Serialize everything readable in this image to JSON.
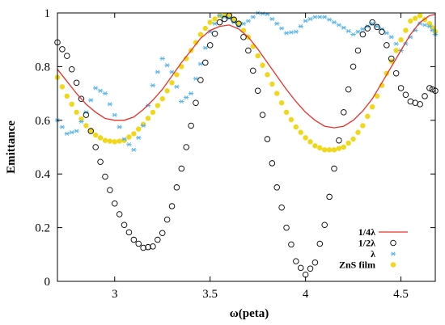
{
  "chart_data": {
    "type": "line",
    "title": "",
    "xlabel": "ω(peta)",
    "ylabel": "Emittance",
    "xlim": [
      2.7,
      4.68
    ],
    "ylim": [
      0,
      1
    ],
    "grid": false,
    "legend_position": "bottom-right",
    "xticks": [
      {
        "value": 3.0,
        "label": "3"
      },
      {
        "value": 3.5,
        "label": "3.5"
      },
      {
        "value": 4.0,
        "label": "4"
      },
      {
        "value": 4.5,
        "label": "4.5"
      }
    ],
    "yticks": [
      {
        "value": 0,
        "label": "0"
      },
      {
        "value": 0.2,
        "label": "0.2"
      },
      {
        "value": 0.4,
        "label": "0.4"
      },
      {
        "value": 0.6,
        "label": "0.6"
      },
      {
        "value": 0.8,
        "label": "0.8"
      },
      {
        "value": 1.0,
        "label": "1"
      }
    ],
    "series": [
      {
        "name": "1/4λ",
        "style": "line",
        "color": "#e8302a",
        "points": [
          [
            2.7,
            0.79
          ],
          [
            2.75,
            0.745
          ],
          [
            2.8,
            0.7
          ],
          [
            2.85,
            0.66
          ],
          [
            2.9,
            0.63
          ],
          [
            2.95,
            0.607
          ],
          [
            3.0,
            0.6
          ],
          [
            3.05,
            0.6
          ],
          [
            3.1,
            0.612
          ],
          [
            3.15,
            0.64
          ],
          [
            3.2,
            0.675
          ],
          [
            3.25,
            0.715
          ],
          [
            3.3,
            0.765
          ],
          [
            3.35,
            0.815
          ],
          [
            3.4,
            0.86
          ],
          [
            3.45,
            0.905
          ],
          [
            3.5,
            0.935
          ],
          [
            3.55,
            0.95
          ],
          [
            3.6,
            0.955
          ],
          [
            3.65,
            0.94
          ],
          [
            3.7,
            0.91
          ],
          [
            3.75,
            0.865
          ],
          [
            3.8,
            0.815
          ],
          [
            3.85,
            0.765
          ],
          [
            3.9,
            0.715
          ],
          [
            3.95,
            0.67
          ],
          [
            4.0,
            0.63
          ],
          [
            4.05,
            0.6
          ],
          [
            4.1,
            0.578
          ],
          [
            4.15,
            0.572
          ],
          [
            4.2,
            0.578
          ],
          [
            4.25,
            0.6
          ],
          [
            4.3,
            0.635
          ],
          [
            4.35,
            0.68
          ],
          [
            4.4,
            0.74
          ],
          [
            4.45,
            0.8
          ],
          [
            4.5,
            0.86
          ],
          [
            4.55,
            0.92
          ],
          [
            4.6,
            0.965
          ],
          [
            4.65,
            0.99
          ],
          [
            4.68,
            0.995
          ]
        ]
      },
      {
        "name": "1/2λ",
        "style": "open-circle",
        "color": "#000000",
        "points": [
          [
            2.7,
            0.89
          ],
          [
            2.75,
            0.84
          ],
          [
            2.8,
            0.74
          ],
          [
            2.85,
            0.62
          ],
          [
            2.9,
            0.5
          ],
          [
            2.95,
            0.39
          ],
          [
            3.0,
            0.29
          ],
          [
            3.05,
            0.21
          ],
          [
            3.1,
            0.155
          ],
          [
            3.15,
            0.125
          ],
          [
            3.2,
            0.13
          ],
          [
            3.25,
            0.18
          ],
          [
            3.3,
            0.28
          ],
          [
            3.35,
            0.42
          ],
          [
            3.4,
            0.58
          ],
          [
            3.45,
            0.75
          ],
          [
            3.5,
            0.88
          ],
          [
            3.55,
            0.965
          ],
          [
            3.6,
            0.99
          ],
          [
            3.65,
            0.96
          ],
          [
            3.7,
            0.86
          ],
          [
            3.75,
            0.71
          ],
          [
            3.8,
            0.53
          ],
          [
            3.85,
            0.35
          ],
          [
            3.9,
            0.2
          ],
          [
            3.95,
            0.075
          ],
          [
            4.0,
            0.025
          ],
          [
            4.05,
            0.07
          ],
          [
            4.1,
            0.21
          ],
          [
            4.15,
            0.42
          ],
          [
            4.2,
            0.63
          ],
          [
            4.25,
            0.8
          ],
          [
            4.3,
            0.92
          ],
          [
            4.35,
            0.965
          ],
          [
            4.4,
            0.93
          ],
          [
            4.45,
            0.83
          ],
          [
            4.5,
            0.72
          ],
          [
            4.55,
            0.67
          ],
          [
            4.6,
            0.66
          ],
          [
            4.65,
            0.72
          ],
          [
            4.68,
            0.71
          ]
        ]
      },
      {
        "name": "λ",
        "style": "asterisk",
        "color": "#56b4e9",
        "points": [
          [
            2.7,
            0.6
          ],
          [
            2.75,
            0.55
          ],
          [
            2.8,
            0.56
          ],
          [
            2.85,
            0.63
          ],
          [
            2.9,
            0.72
          ],
          [
            2.95,
            0.7
          ],
          [
            3.0,
            0.62
          ],
          [
            3.05,
            0.53
          ],
          [
            3.1,
            0.49
          ],
          [
            3.15,
            0.58
          ],
          [
            3.2,
            0.73
          ],
          [
            3.25,
            0.83
          ],
          [
            3.3,
            0.78
          ],
          [
            3.35,
            0.67
          ],
          [
            3.4,
            0.7
          ],
          [
            3.45,
            0.81
          ],
          [
            3.5,
            0.93
          ],
          [
            3.55,
            0.99
          ],
          [
            3.6,
            0.98
          ],
          [
            3.65,
            0.95
          ],
          [
            3.7,
            0.97
          ],
          [
            3.75,
            1.0
          ],
          [
            3.8,
            0.995
          ],
          [
            3.85,
            0.96
          ],
          [
            3.9,
            0.925
          ],
          [
            3.95,
            0.93
          ],
          [
            4.0,
            0.97
          ],
          [
            4.05,
            0.985
          ],
          [
            4.1,
            0.985
          ],
          [
            4.15,
            0.965
          ],
          [
            4.2,
            0.945
          ],
          [
            4.25,
            0.92
          ],
          [
            4.3,
            0.94
          ],
          [
            4.35,
            0.96
          ],
          [
            4.4,
            0.94
          ],
          [
            4.45,
            0.91
          ],
          [
            4.5,
            0.86
          ],
          [
            4.55,
            0.91
          ],
          [
            4.6,
            0.96
          ],
          [
            4.65,
            0.95
          ],
          [
            4.68,
            0.92
          ]
        ]
      },
      {
        "name": "ZnS film",
        "style": "filled-circle",
        "color": "#f0d818",
        "points": [
          [
            2.7,
            0.76
          ],
          [
            2.75,
            0.69
          ],
          [
            2.8,
            0.63
          ],
          [
            2.85,
            0.58
          ],
          [
            2.9,
            0.545
          ],
          [
            2.95,
            0.525
          ],
          [
            3.0,
            0.52
          ],
          [
            3.05,
            0.525
          ],
          [
            3.1,
            0.55
          ],
          [
            3.15,
            0.585
          ],
          [
            3.2,
            0.63
          ],
          [
            3.25,
            0.68
          ],
          [
            3.3,
            0.74
          ],
          [
            3.35,
            0.8
          ],
          [
            3.4,
            0.86
          ],
          [
            3.45,
            0.92
          ],
          [
            3.5,
            0.965
          ],
          [
            3.55,
            0.99
          ],
          [
            3.6,
            0.99
          ],
          [
            3.65,
            0.96
          ],
          [
            3.7,
            0.91
          ],
          [
            3.75,
            0.84
          ],
          [
            3.8,
            0.77
          ],
          [
            3.85,
            0.7
          ],
          [
            3.9,
            0.63
          ],
          [
            3.95,
            0.575
          ],
          [
            4.0,
            0.535
          ],
          [
            4.05,
            0.505
          ],
          [
            4.1,
            0.49
          ],
          [
            4.15,
            0.49
          ],
          [
            4.2,
            0.5
          ],
          [
            4.25,
            0.53
          ],
          [
            4.3,
            0.58
          ],
          [
            4.35,
            0.65
          ],
          [
            4.4,
            0.73
          ],
          [
            4.45,
            0.82
          ],
          [
            4.5,
            0.9
          ],
          [
            4.55,
            0.97
          ],
          [
            4.6,
            0.99
          ],
          [
            4.65,
            0.96
          ],
          [
            4.68,
            0.93
          ]
        ]
      }
    ]
  }
}
